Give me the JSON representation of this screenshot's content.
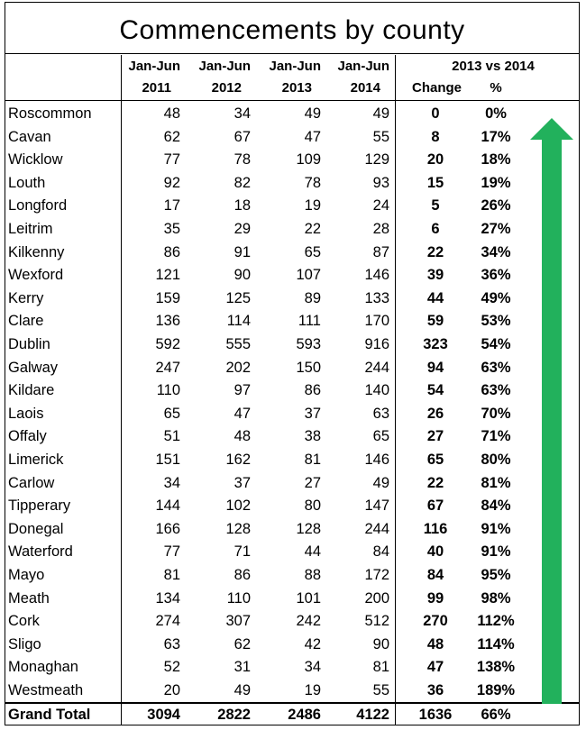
{
  "title": "Commencements by county",
  "header": {
    "y2011_top": "Jan-Jun",
    "y2011": "2011",
    "y2012_top": "Jan-Jun",
    "y2012": "2012",
    "y2013_top": "Jan-Jun",
    "y2013": "2013",
    "y2014_top": "Jan-Jun",
    "y2014": "2014",
    "compare": "2013 vs 2014",
    "change": "Change",
    "pct": "%"
  },
  "rows": [
    {
      "county": "Roscommon",
      "y2011": "48",
      "y2012": "34",
      "y2013": "49",
      "y2014": "49",
      "change": "0",
      "pct": "0%"
    },
    {
      "county": "Cavan",
      "y2011": "62",
      "y2012": "67",
      "y2013": "47",
      "y2014": "55",
      "change": "8",
      "pct": "17%"
    },
    {
      "county": "Wicklow",
      "y2011": "77",
      "y2012": "78",
      "y2013": "109",
      "y2014": "129",
      "change": "20",
      "pct": "18%"
    },
    {
      "county": "Louth",
      "y2011": "92",
      "y2012": "82",
      "y2013": "78",
      "y2014": "93",
      "change": "15",
      "pct": "19%"
    },
    {
      "county": "Longford",
      "y2011": "17",
      "y2012": "18",
      "y2013": "19",
      "y2014": "24",
      "change": "5",
      "pct": "26%"
    },
    {
      "county": "Leitrim",
      "y2011": "35",
      "y2012": "29",
      "y2013": "22",
      "y2014": "28",
      "change": "6",
      "pct": "27%"
    },
    {
      "county": "Kilkenny",
      "y2011": "86",
      "y2012": "91",
      "y2013": "65",
      "y2014": "87",
      "change": "22",
      "pct": "34%"
    },
    {
      "county": "Wexford",
      "y2011": "121",
      "y2012": "90",
      "y2013": "107",
      "y2014": "146",
      "change": "39",
      "pct": "36%"
    },
    {
      "county": "Kerry",
      "y2011": "159",
      "y2012": "125",
      "y2013": "89",
      "y2014": "133",
      "change": "44",
      "pct": "49%"
    },
    {
      "county": "Clare",
      "y2011": "136",
      "y2012": "114",
      "y2013": "111",
      "y2014": "170",
      "change": "59",
      "pct": "53%"
    },
    {
      "county": "Dublin",
      "y2011": "592",
      "y2012": "555",
      "y2013": "593",
      "y2014": "916",
      "change": "323",
      "pct": "54%"
    },
    {
      "county": "Galway",
      "y2011": "247",
      "y2012": "202",
      "y2013": "150",
      "y2014": "244",
      "change": "94",
      "pct": "63%"
    },
    {
      "county": "Kildare",
      "y2011": "110",
      "y2012": "97",
      "y2013": "86",
      "y2014": "140",
      "change": "54",
      "pct": "63%"
    },
    {
      "county": "Laois",
      "y2011": "65",
      "y2012": "47",
      "y2013": "37",
      "y2014": "63",
      "change": "26",
      "pct": "70%"
    },
    {
      "county": "Offaly",
      "y2011": "51",
      "y2012": "48",
      "y2013": "38",
      "y2014": "65",
      "change": "27",
      "pct": "71%"
    },
    {
      "county": "Limerick",
      "y2011": "151",
      "y2012": "162",
      "y2013": "81",
      "y2014": "146",
      "change": "65",
      "pct": "80%"
    },
    {
      "county": "Carlow",
      "y2011": "34",
      "y2012": "37",
      "y2013": "27",
      "y2014": "49",
      "change": "22",
      "pct": "81%"
    },
    {
      "county": "Tipperary",
      "y2011": "144",
      "y2012": "102",
      "y2013": "80",
      "y2014": "147",
      "change": "67",
      "pct": "84%"
    },
    {
      "county": "Donegal",
      "y2011": "166",
      "y2012": "128",
      "y2013": "128",
      "y2014": "244",
      "change": "116",
      "pct": "91%"
    },
    {
      "county": "Waterford",
      "y2011": "77",
      "y2012": "71",
      "y2013": "44",
      "y2014": "84",
      "change": "40",
      "pct": "91%"
    },
    {
      "county": "Mayo",
      "y2011": "81",
      "y2012": "86",
      "y2013": "88",
      "y2014": "172",
      "change": "84",
      "pct": "95%"
    },
    {
      "county": "Meath",
      "y2011": "134",
      "y2012": "110",
      "y2013": "101",
      "y2014": "200",
      "change": "99",
      "pct": "98%"
    },
    {
      "county": "Cork",
      "y2011": "274",
      "y2012": "307",
      "y2013": "242",
      "y2014": "512",
      "change": "270",
      "pct": "112%"
    },
    {
      "county": "Sligo",
      "y2011": "63",
      "y2012": "62",
      "y2013": "42",
      "y2014": "90",
      "change": "48",
      "pct": "114%"
    },
    {
      "county": "Monaghan",
      "y2011": "52",
      "y2012": "31",
      "y2013": "34",
      "y2014": "81",
      "change": "47",
      "pct": "138%"
    },
    {
      "county": "Westmeath",
      "y2011": "20",
      "y2012": "49",
      "y2013": "19",
      "y2014": "55",
      "change": "36",
      "pct": "189%"
    }
  ],
  "total": {
    "county": "Grand Total",
    "y2011": "3094",
    "y2012": "2822",
    "y2013": "2486",
    "y2014": "4122",
    "change": "1636",
    "pct": "66%"
  },
  "arrow": {
    "color": "#22b15c",
    "direction": "up",
    "icon": "up-arrow-icon"
  }
}
